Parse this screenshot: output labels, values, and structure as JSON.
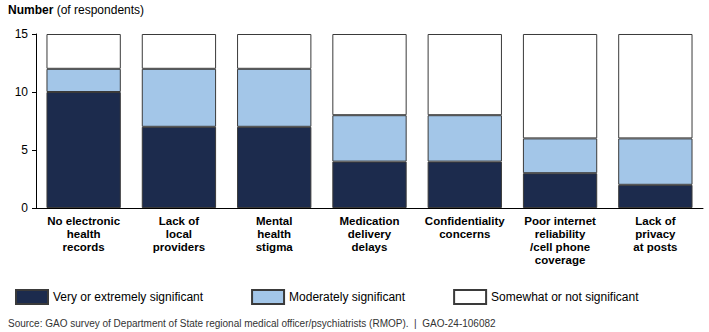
{
  "chart_data": {
    "type": "bar",
    "y_label": "Number (of respondents)",
    "categories": [
      "No electronic\nhealth\nrecords",
      "Lack of\nlocal\nproviders",
      "Mental\nhealth\nstigma",
      "Medication\ndelivery\ndelays",
      "Confidentiality\nconcerns",
      "Poor internet\nreliability\n/cell phone\ncoverage",
      "Lack of\nprivacy\nat posts"
    ],
    "series": [
      {
        "name": "Very or extremely significant",
        "color": "#1c2b4d",
        "values": [
          10,
          7,
          7,
          4,
          4,
          3,
          2
        ]
      },
      {
        "name": "Moderately significant",
        "color": "#a3c6e8",
        "values": [
          2,
          5,
          5,
          4,
          4,
          3,
          4
        ]
      },
      {
        "name": "Somewhat or not significant",
        "color": "#ffffff",
        "values": [
          3,
          3,
          3,
          7,
          7,
          9,
          9
        ]
      }
    ],
    "stacked": true,
    "ylim": [
      0,
      15
    ],
    "yticks": [
      0,
      5,
      10,
      15
    ],
    "grid": false,
    "legend": "bottom",
    "source": "Source: GAO survey of Department of State regional medical officer/psychiatrists (RMOP).  |  GAO-24-106082"
  }
}
